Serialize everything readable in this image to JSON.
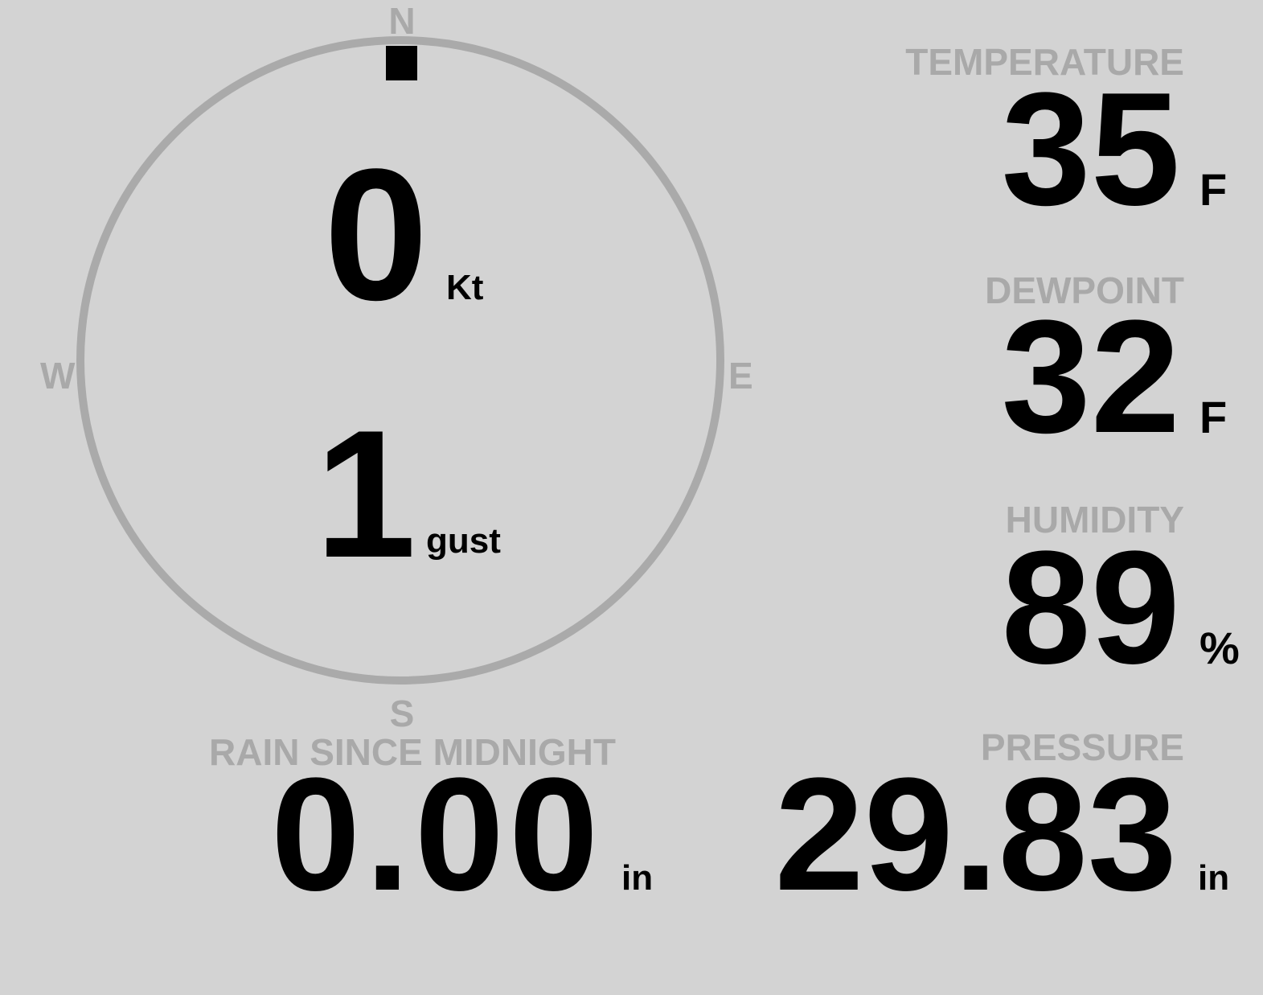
{
  "compass": {
    "north": "N",
    "south": "S",
    "east": "E",
    "west": "W",
    "wind_direction_deg": 0,
    "ring_color": "#aaaaaa",
    "marker_color": "#000000"
  },
  "wind": {
    "speed": "0",
    "speed_unit": "Kt",
    "gust": "1",
    "gust_unit": "gust"
  },
  "temperature": {
    "label": "TEMPERATURE",
    "value": "35",
    "unit": "F"
  },
  "dewpoint": {
    "label": "DEWPOINT",
    "value": "32",
    "unit": "F"
  },
  "humidity": {
    "label": "HUMIDITY",
    "value": "89",
    "unit": "%"
  },
  "pressure": {
    "label": "PRESSURE",
    "value": "29.83",
    "unit": "in"
  },
  "rain": {
    "label": "RAIN SINCE MIDNIGHT",
    "value": "0.00",
    "unit": "in"
  },
  "colors": {
    "background": "#d3d3d3",
    "label": "#a9a9a9",
    "value": "#000000"
  }
}
